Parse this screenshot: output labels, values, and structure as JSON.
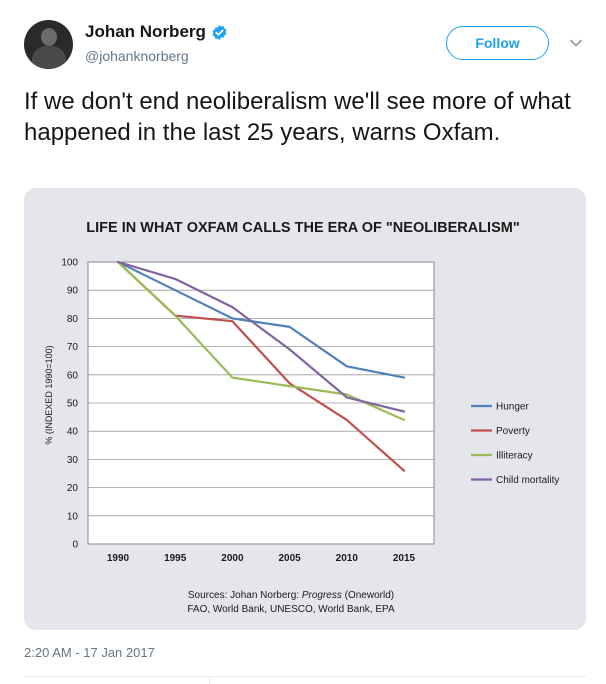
{
  "user": {
    "name": "Johan Norberg",
    "handle": "@johanknorberg",
    "verified": true
  },
  "follow_label": "Follow",
  "tweet_text": "If we don't end neoliberalism we'll see more of what happened in the last 25 years, warns Oxfam.",
  "timestamp": "2:20 AM - 17 Jan 2017",
  "colors": {
    "accent": "#1da1f2",
    "card_bg": "#e5e6eb"
  },
  "icons": {
    "verified": "verified-badge-icon",
    "caret": "chevron-down-icon"
  },
  "chart_data": {
    "type": "line",
    "title": "LIFE IN WHAT OXFAM CALLS THE ERA OF \"NEOLIBERALISM\"",
    "ylabel": "% (INDEXED 1990=100)",
    "xlabel": "",
    "x": [
      "1990",
      "1995",
      "2000",
      "2005",
      "2010",
      "2015"
    ],
    "ylim": [
      0,
      100
    ],
    "yticks": [
      0,
      10,
      20,
      30,
      40,
      50,
      60,
      70,
      80,
      90,
      100
    ],
    "grid": true,
    "legend_position": "right",
    "series": [
      {
        "name": "Hunger",
        "color": "#4f81bd",
        "values": [
          100,
          90,
          80,
          77,
          63,
          59
        ]
      },
      {
        "name": "Poverty",
        "color": "#c0504d",
        "values": [
          100,
          81,
          79,
          57,
          44,
          26
        ]
      },
      {
        "name": "Illiteracy",
        "color": "#9bbb59",
        "values": [
          100,
          81,
          59,
          56,
          53,
          44
        ]
      },
      {
        "name": "Child mortality",
        "color": "#8064a2",
        "values": [
          100,
          94,
          84,
          69,
          52,
          47
        ]
      }
    ],
    "sources_prefix": "Sources: Johan Norberg: ",
    "sources_italic": "Progress",
    "sources_suffix": " (Oneworld)",
    "sources_line2": "FAO, World Bank, UNESCO, World Bank, EPA"
  }
}
